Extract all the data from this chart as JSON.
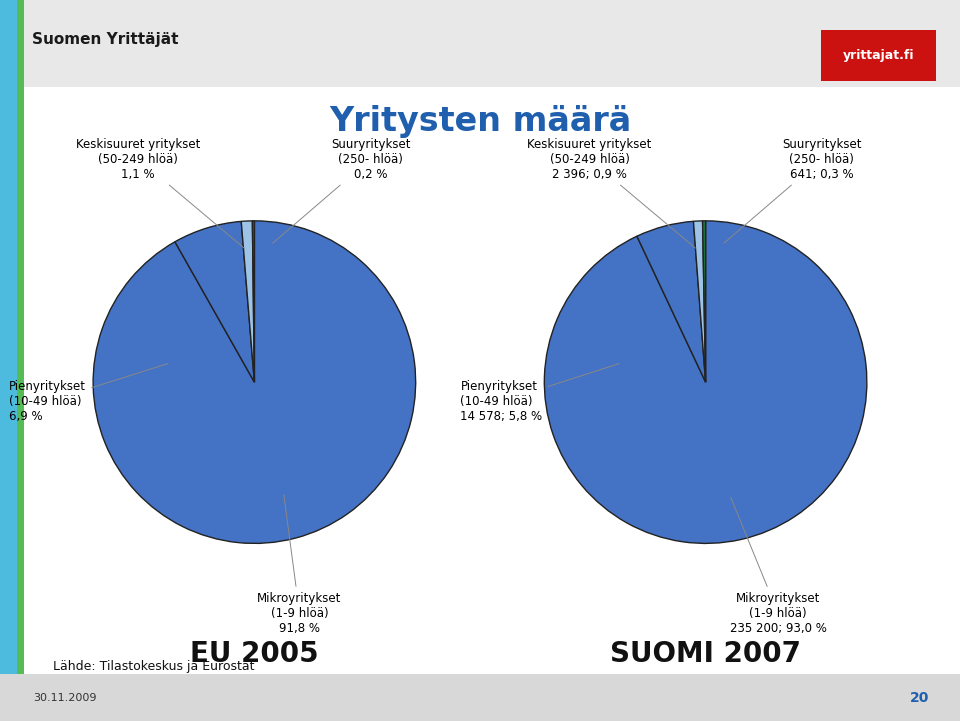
{
  "title": "Yritysten määrä",
  "title_color": "#1F5FAD",
  "title_fontsize": 24,
  "bg_color": "#FFFFFF",
  "slide_bg": "#F0F0F0",
  "eu2005": {
    "label": "EU 2005",
    "values": [
      91.8,
      6.9,
      1.1,
      0.2
    ],
    "slice_colors": [
      "#4472C4",
      "#4472C4",
      "#9DC3E6",
      "#1F7A3C"
    ],
    "anno_mikro": "Mikroyritykset\n(1-9 hlöä)\n91,8 %",
    "anno_pien": "Pienyritykset\n(10-49 hlöä)\n6,9 %",
    "anno_keski": "Keskisuuret yritykset\n(50-249 hlöä)\n1,1 %",
    "anno_suur": "Suuryritykset\n(250- hlöä)\n0,2 %"
  },
  "suomi2007": {
    "label": "SUOMI 2007",
    "values": [
      93.0,
      5.8,
      0.9,
      0.3
    ],
    "slice_colors": [
      "#4472C4",
      "#4472C4",
      "#9DC3E6",
      "#1F7A3C"
    ],
    "anno_mikro": "Mikroyritykset\n(1-9 hlöä)\n235 200; 93,0 %",
    "anno_pien": "Pienyritykset\n(10-49 hlöä)\n14 578; 5,8 %",
    "anno_keski": "Keskisuuret yritykset\n(50-249 hlöä)\n2 396; 0,9 %",
    "anno_suur": "Suuryritykset\n(250- hlöä)\n641; 0,3 %"
  },
  "footer": "Lähde: Tilastokeskus ja Eurostat",
  "page_num": "20",
  "date": "30.11.2009",
  "left_bar_color": "#4DBBDD",
  "left_green_color": "#55BB55",
  "bottom_bar_color": "#D8D8D8",
  "header_bar_color": "#E8E8E8"
}
